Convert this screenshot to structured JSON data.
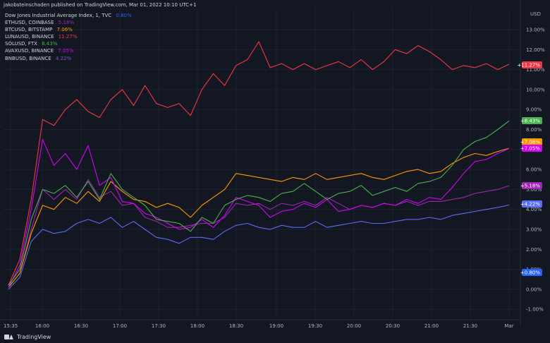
{
  "header": {
    "publisher": "jakobsteinschaden published on TradingView.com, Mar 01, 2022 10:10 UTC+1",
    "main_symbol": "Dow Jones Industrial Average Index, 1, TVC",
    "main_value": "0.80%"
  },
  "legend": [
    {
      "symbol": "ETHUSD, COINBASE",
      "value": "5.18%",
      "color": "#9c27b0"
    },
    {
      "symbol": "BTCUSD, BITSTAMP",
      "value": "7.06%",
      "color": "#ff9800"
    },
    {
      "symbol": "LUNAUSD, BINANCE",
      "value": "11.27%",
      "color": "#f23645"
    },
    {
      "symbol": "SOLUSD, FTX",
      "value": "8.43%",
      "color": "#4caf50"
    },
    {
      "symbol": "AVAXUSD, BINANCE",
      "value": "7.05%",
      "color": "#d500f9"
    },
    {
      "symbol": "BNBUSD, BINANCE",
      "value": "4.22%",
      "color": "#7e57c2"
    }
  ],
  "footer": {
    "brand": "TradingView"
  },
  "chart_data": {
    "type": "line",
    "y_unit_label": "USD",
    "ylim": [
      -1.5,
      13.5
    ],
    "y_ticks": [
      "-1.00%",
      "0.00%",
      "1.00%",
      "2.00%",
      "3.00%",
      "4.00%",
      "5.00%",
      "6.00%",
      "7.00%",
      "8.00%",
      "9.00%",
      "10.00%",
      "11.00%",
      "12.00%",
      "13.00%"
    ],
    "x_ticks": [
      "15:35",
      "16:00",
      "16:30",
      "17:00",
      "17:30",
      "18:00",
      "18:30",
      "19:00",
      "19:30",
      "20:00",
      "20:30",
      "21:00",
      "21:30",
      "Mar"
    ],
    "grid": true,
    "series": [
      {
        "name": "LUNAUSD, BINANCE",
        "color": "#f23645",
        "label": "+11.27%",
        "values": [
          0.2,
          1.5,
          4.5,
          8.5,
          8.2,
          9.0,
          9.5,
          8.9,
          8.6,
          9.5,
          10.0,
          9.2,
          10.2,
          9.3,
          9.1,
          9.3,
          8.7,
          10.0,
          10.8,
          10.2,
          11.2,
          11.5,
          12.4,
          11.1,
          11.3,
          11.0,
          11.3,
          11.0,
          11.2,
          11.4,
          11.1,
          11.5,
          11.0,
          11.4,
          12.0,
          11.8,
          12.2,
          11.9,
          11.5,
          11.0,
          11.2,
          11.1,
          11.3,
          11.0,
          11.27
        ]
      },
      {
        "name": "SOLUSD, FTX",
        "color": "#4caf50",
        "label": "+8.43%",
        "values": [
          0.2,
          1.0,
          3.5,
          5.0,
          4.8,
          5.2,
          4.6,
          5.4,
          4.5,
          5.8,
          5.0,
          4.6,
          4.2,
          3.5,
          3.4,
          3.3,
          2.9,
          3.6,
          3.3,
          4.2,
          4.5,
          4.7,
          4.6,
          4.4,
          4.8,
          4.9,
          5.3,
          4.9,
          4.5,
          4.8,
          4.9,
          5.2,
          4.7,
          4.9,
          5.1,
          4.9,
          5.3,
          5.4,
          5.6,
          6.2,
          7.0,
          7.4,
          7.6,
          8.0,
          8.43
        ]
      },
      {
        "name": "BTCUSD, BITSTAMP",
        "color": "#ff9800",
        "label": "+7.06%",
        "values": [
          0.1,
          0.8,
          2.8,
          4.2,
          4.0,
          4.6,
          4.3,
          4.9,
          4.4,
          5.4,
          4.9,
          4.5,
          4.4,
          4.1,
          4.3,
          4.1,
          3.6,
          4.2,
          4.6,
          5.0,
          5.8,
          5.7,
          5.6,
          5.5,
          5.4,
          5.6,
          5.5,
          5.8,
          5.5,
          5.6,
          5.7,
          5.8,
          5.6,
          5.5,
          5.7,
          5.9,
          6.0,
          5.8,
          5.9,
          6.3,
          6.6,
          6.8,
          6.7,
          6.9,
          7.06
        ]
      },
      {
        "name": "AVAXUSD, BINANCE",
        "color": "#d500f9",
        "label": "+7.05%",
        "values": [
          0.1,
          1.2,
          4.0,
          7.5,
          6.2,
          6.8,
          6.0,
          7.2,
          5.2,
          5.6,
          4.4,
          4.3,
          3.8,
          3.6,
          3.3,
          3.0,
          3.1,
          3.5,
          3.1,
          3.7,
          4.6,
          4.4,
          4.2,
          3.6,
          3.9,
          4.0,
          4.3,
          4.1,
          4.5,
          3.9,
          4.0,
          4.2,
          4.1,
          4.3,
          4.2,
          4.5,
          4.3,
          4.6,
          4.5,
          5.1,
          5.8,
          6.4,
          6.5,
          6.8,
          7.05
        ]
      },
      {
        "name": "ETHUSD, COINBASE",
        "color": "#9c27b0",
        "label": "+5.18%",
        "values": [
          0.1,
          0.8,
          3.0,
          5.0,
          4.5,
          5.0,
          4.5,
          5.5,
          4.6,
          4.9,
          4.2,
          4.3,
          3.6,
          3.4,
          3.1,
          3.1,
          3.2,
          3.3,
          3.3,
          3.6,
          4.3,
          4.2,
          4.3,
          4.0,
          4.3,
          4.2,
          4.4,
          4.2,
          4.6,
          4.3,
          4.0,
          4.2,
          4.1,
          4.3,
          4.2,
          4.4,
          4.2,
          4.4,
          4.4,
          4.5,
          4.6,
          4.8,
          4.9,
          5.0,
          5.18
        ]
      },
      {
        "name": "BNBUSD, BINANCE",
        "color": "#5b6cf5",
        "label": "+4.22%",
        "values": [
          0.0,
          0.6,
          2.4,
          3.0,
          2.8,
          2.9,
          3.3,
          3.5,
          3.3,
          3.6,
          3.1,
          3.4,
          3.0,
          2.6,
          2.5,
          2.3,
          2.6,
          2.6,
          2.5,
          2.9,
          3.2,
          3.3,
          3.1,
          3.0,
          3.2,
          3.1,
          3.1,
          3.4,
          3.1,
          3.2,
          3.3,
          3.4,
          3.3,
          3.3,
          3.4,
          3.5,
          3.5,
          3.6,
          3.5,
          3.7,
          3.8,
          3.9,
          4.0,
          4.1,
          4.22
        ]
      },
      {
        "name": "Dow Jones Industrial Average Index, 1, TVC",
        "color": "#2962ff",
        "label": "+0.80%",
        "values": []
      }
    ]
  }
}
